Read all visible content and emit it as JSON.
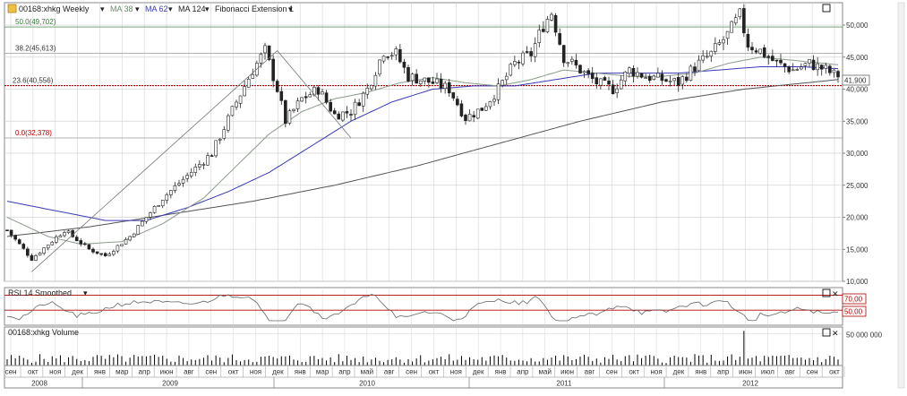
{
  "colors": {
    "candle": "#222222",
    "fib_line": "#b00000",
    "fib_label": "#b00000",
    "ma38": "#8a9a8a",
    "ma62": "#3a3ab8",
    "ma124": "#555555",
    "rsi_line": "#666666",
    "rsi_level": "#b00000",
    "grid": "#d4d4d4",
    "trend": "#777777",
    "volume": "#000000"
  },
  "header": {
    "instrument": "00168:xhkg Weekly",
    "ma38": "MA 38",
    "ma62": "MA 62",
    "ma124": "MA 124",
    "fib": "Fibonacci Extension 1",
    "dropdown_icon": "triangle-down-icon"
  },
  "panels": {
    "rsi_title": "RSI 14 Smoothed",
    "volume_title": "00168:xhkg Volume",
    "panel_buttons": {
      "square": "□",
      "close": "✕"
    }
  },
  "chart_data": [
    {
      "type": "candlestick",
      "frequency": "weekly",
      "last_price_label": "41,900",
      "last_price": 41900,
      "ylim": [
        10000,
        53500
      ],
      "y_ticks": [
        10000,
        15000,
        20000,
        25000,
        30000,
        35000,
        40000,
        45000,
        50000
      ],
      "y_tick_labels": [
        "10,000",
        "15,000",
        "20,000",
        "25,000",
        "30,000",
        "35,000",
        "40,000",
        "45,000",
        "50,000"
      ],
      "x_month_labels": [
        "сен",
        "окт",
        "ноя",
        "дек",
        "янв",
        "мар",
        "апр",
        "июн",
        "авг",
        "сен",
        "окт",
        "ноя",
        "дек",
        "янв",
        "мар",
        "апр",
        "май",
        "авг",
        "сен",
        "окт",
        "ноя",
        "дек",
        "янв",
        "апр",
        "май",
        "июн",
        "авг",
        "сен",
        "окт",
        "ноя",
        "дек",
        "янв",
        "апр",
        "июн",
        "июл",
        "авг",
        "сен",
        "окт"
      ],
      "x_year_labels": [
        "2008",
        "2009",
        "2010",
        "2011",
        "2012"
      ],
      "fibonacci": [
        {
          "label": "50.0(49,702)",
          "value": 49702
        },
        {
          "label": "38.2(45,613)",
          "value": 45613
        },
        {
          "label": "23.6(40,556)",
          "value": 40556
        },
        {
          "label": "0.0(32,378)",
          "value": 32378
        }
      ],
      "price_path": [
        [
          0,
          18000
        ],
        [
          6,
          13500
        ],
        [
          14,
          18000
        ],
        [
          20,
          15000
        ],
        [
          24,
          14000
        ],
        [
          30,
          17000
        ],
        [
          38,
          23000
        ],
        [
          50,
          30000
        ],
        [
          56,
          38000
        ],
        [
          60,
          43000
        ],
        [
          63,
          46000
        ],
        [
          66,
          40000
        ],
        [
          68,
          35000
        ],
        [
          72,
          38500
        ],
        [
          76,
          40000
        ],
        [
          80,
          36000
        ],
        [
          84,
          36500
        ],
        [
          88,
          40000
        ],
        [
          92,
          46000
        ],
        [
          95,
          45500
        ],
        [
          98,
          42000
        ],
        [
          104,
          41000
        ],
        [
          108,
          40000
        ],
        [
          112,
          35500
        ],
        [
          116,
          37000
        ],
        [
          120,
          40000
        ],
        [
          124,
          44000
        ],
        [
          128,
          45500
        ],
        [
          131,
          50000
        ],
        [
          133,
          52000
        ],
        [
          136,
          45000
        ],
        [
          140,
          43000
        ],
        [
          144,
          41000
        ],
        [
          148,
          40000
        ],
        [
          152,
          43000
        ],
        [
          156,
          42000
        ],
        [
          160,
          41500
        ],
        [
          164,
          41000
        ],
        [
          168,
          43500
        ],
        [
          172,
          45500
        ],
        [
          176,
          48500
        ],
        [
          179,
          51500
        ],
        [
          181,
          47000
        ],
        [
          184,
          46000
        ],
        [
          188,
          44000
        ],
        [
          192,
          43000
        ],
        [
          196,
          44000
        ],
        [
          200,
          43000
        ],
        [
          203,
          41900
        ]
      ],
      "ma38_path": [
        [
          0,
          20000
        ],
        [
          10,
          17000
        ],
        [
          18,
          15800
        ],
        [
          28,
          16200
        ],
        [
          38,
          19000
        ],
        [
          48,
          23000
        ],
        [
          56,
          28000
        ],
        [
          64,
          33000
        ],
        [
          72,
          36500
        ],
        [
          80,
          38500
        ],
        [
          88,
          39500
        ],
        [
          96,
          41000
        ],
        [
          104,
          41800
        ],
        [
          112,
          41000
        ],
        [
          120,
          40500
        ],
        [
          128,
          41500
        ],
        [
          136,
          43000
        ],
        [
          144,
          42500
        ],
        [
          152,
          42000
        ],
        [
          160,
          42000
        ],
        [
          168,
          42500
        ],
        [
          176,
          44000
        ],
        [
          184,
          45000
        ],
        [
          192,
          44500
        ],
        [
          200,
          44000
        ],
        [
          203,
          43800
        ]
      ],
      "ma62_path": [
        [
          0,
          22500
        ],
        [
          12,
          21000
        ],
        [
          24,
          19500
        ],
        [
          34,
          19500
        ],
        [
          44,
          21500
        ],
        [
          54,
          24000
        ],
        [
          64,
          27000
        ],
        [
          74,
          31000
        ],
        [
          84,
          35000
        ],
        [
          94,
          38000
        ],
        [
          104,
          40000
        ],
        [
          114,
          40500
        ],
        [
          124,
          40500
        ],
        [
          134,
          41500
        ],
        [
          144,
          42500
        ],
        [
          154,
          42500
        ],
        [
          164,
          42500
        ],
        [
          174,
          43000
        ],
        [
          184,
          43500
        ],
        [
          194,
          43500
        ],
        [
          203,
          43200
        ]
      ],
      "ma124_path": [
        [
          0,
          17000
        ],
        [
          20,
          18500
        ],
        [
          40,
          20500
        ],
        [
          60,
          22500
        ],
        [
          80,
          25000
        ],
        [
          100,
          28000
        ],
        [
          120,
          31500
        ],
        [
          140,
          35000
        ],
        [
          160,
          38000
        ],
        [
          180,
          40000
        ],
        [
          203,
          41500
        ]
      ],
      "fib_trend_path": [
        [
          6,
          11500
        ],
        [
          66,
          46000
        ],
        [
          84,
          32378
        ]
      ]
    },
    {
      "type": "line",
      "name": "RSI 14 Smoothed",
      "ylim": [
        30,
        80
      ],
      "levels": [
        {
          "label": "70,00",
          "value": 70
        },
        {
          "label": "50,00",
          "value": 50
        }
      ]
    },
    {
      "type": "bar",
      "name": "00168:xhkg Volume",
      "y_tick_label": "50 000 000",
      "y_tick_value": 50000000,
      "ylim": [
        0,
        60000000
      ],
      "spike_label_value": 54000000
    }
  ]
}
